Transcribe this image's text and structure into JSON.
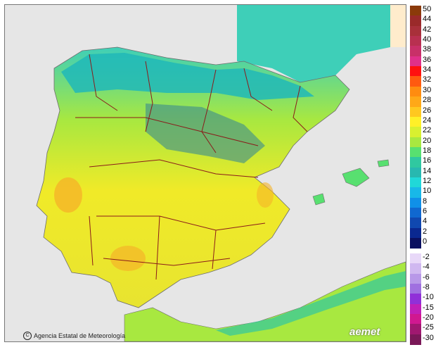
{
  "map": {
    "credit_text": "Agencia Estatal de Meteorología",
    "logo_text": "aemet",
    "colors": {
      "sea": "#e6e6e6",
      "border": "#8b1a1a",
      "cool": "#5bc8c8",
      "mid": "#b6e64a",
      "warm": "#f5e61e",
      "hot": "#f5b428",
      "mountain": "#3a8a8f",
      "france_cool": "#3ecfb8",
      "atlantic": "#ffeccc"
    }
  },
  "legend": {
    "upper": [
      {
        "label": "50",
        "color": "#8b3a0a"
      },
      {
        "label": "44",
        "color": "#9a2a2a"
      },
      {
        "label": "42",
        "color": "#a8303a"
      },
      {
        "label": "40",
        "color": "#b83050"
      },
      {
        "label": "38",
        "color": "#c83068"
      },
      {
        "label": "36",
        "color": "#e0308a"
      },
      {
        "label": "34",
        "color": "#ff1010"
      },
      {
        "label": "32",
        "color": "#ff5a10"
      },
      {
        "label": "30",
        "color": "#ff8c10"
      },
      {
        "label": "28",
        "color": "#ffa818"
      },
      {
        "label": "26",
        "color": "#ffc820"
      },
      {
        "label": "24",
        "color": "#fff028"
      },
      {
        "label": "22",
        "color": "#d8f030"
      },
      {
        "label": "20",
        "color": "#a8e840"
      },
      {
        "label": "18",
        "color": "#58e070"
      },
      {
        "label": "16",
        "color": "#30c8a0"
      },
      {
        "label": "14",
        "color": "#28b8b0"
      },
      {
        "label": "12",
        "color": "#20d8d8"
      },
      {
        "label": "10",
        "color": "#18b8e8"
      },
      {
        "label": "8",
        "color": "#1090e8"
      },
      {
        "label": "6",
        "color": "#1068d0"
      },
      {
        "label": "4",
        "color": "#1048b0"
      },
      {
        "label": "2",
        "color": "#0a2890"
      },
      {
        "label": "0",
        "color": "#0a1060"
      }
    ],
    "lower": [
      {
        "label": "-2",
        "color": "#e8d8f8"
      },
      {
        "label": "-4",
        "color": "#d0b8f0"
      },
      {
        "label": "-6",
        "color": "#b898e8"
      },
      {
        "label": "-8",
        "color": "#a070e0"
      },
      {
        "label": "-10",
        "color": "#9030d8"
      },
      {
        "label": "-15",
        "color": "#c020b8"
      },
      {
        "label": "-20",
        "color": "#d01890"
      },
      {
        "label": "-25",
        "color": "#a01870"
      },
      {
        "label": "-30",
        "color": "#7a1858"
      }
    ]
  }
}
